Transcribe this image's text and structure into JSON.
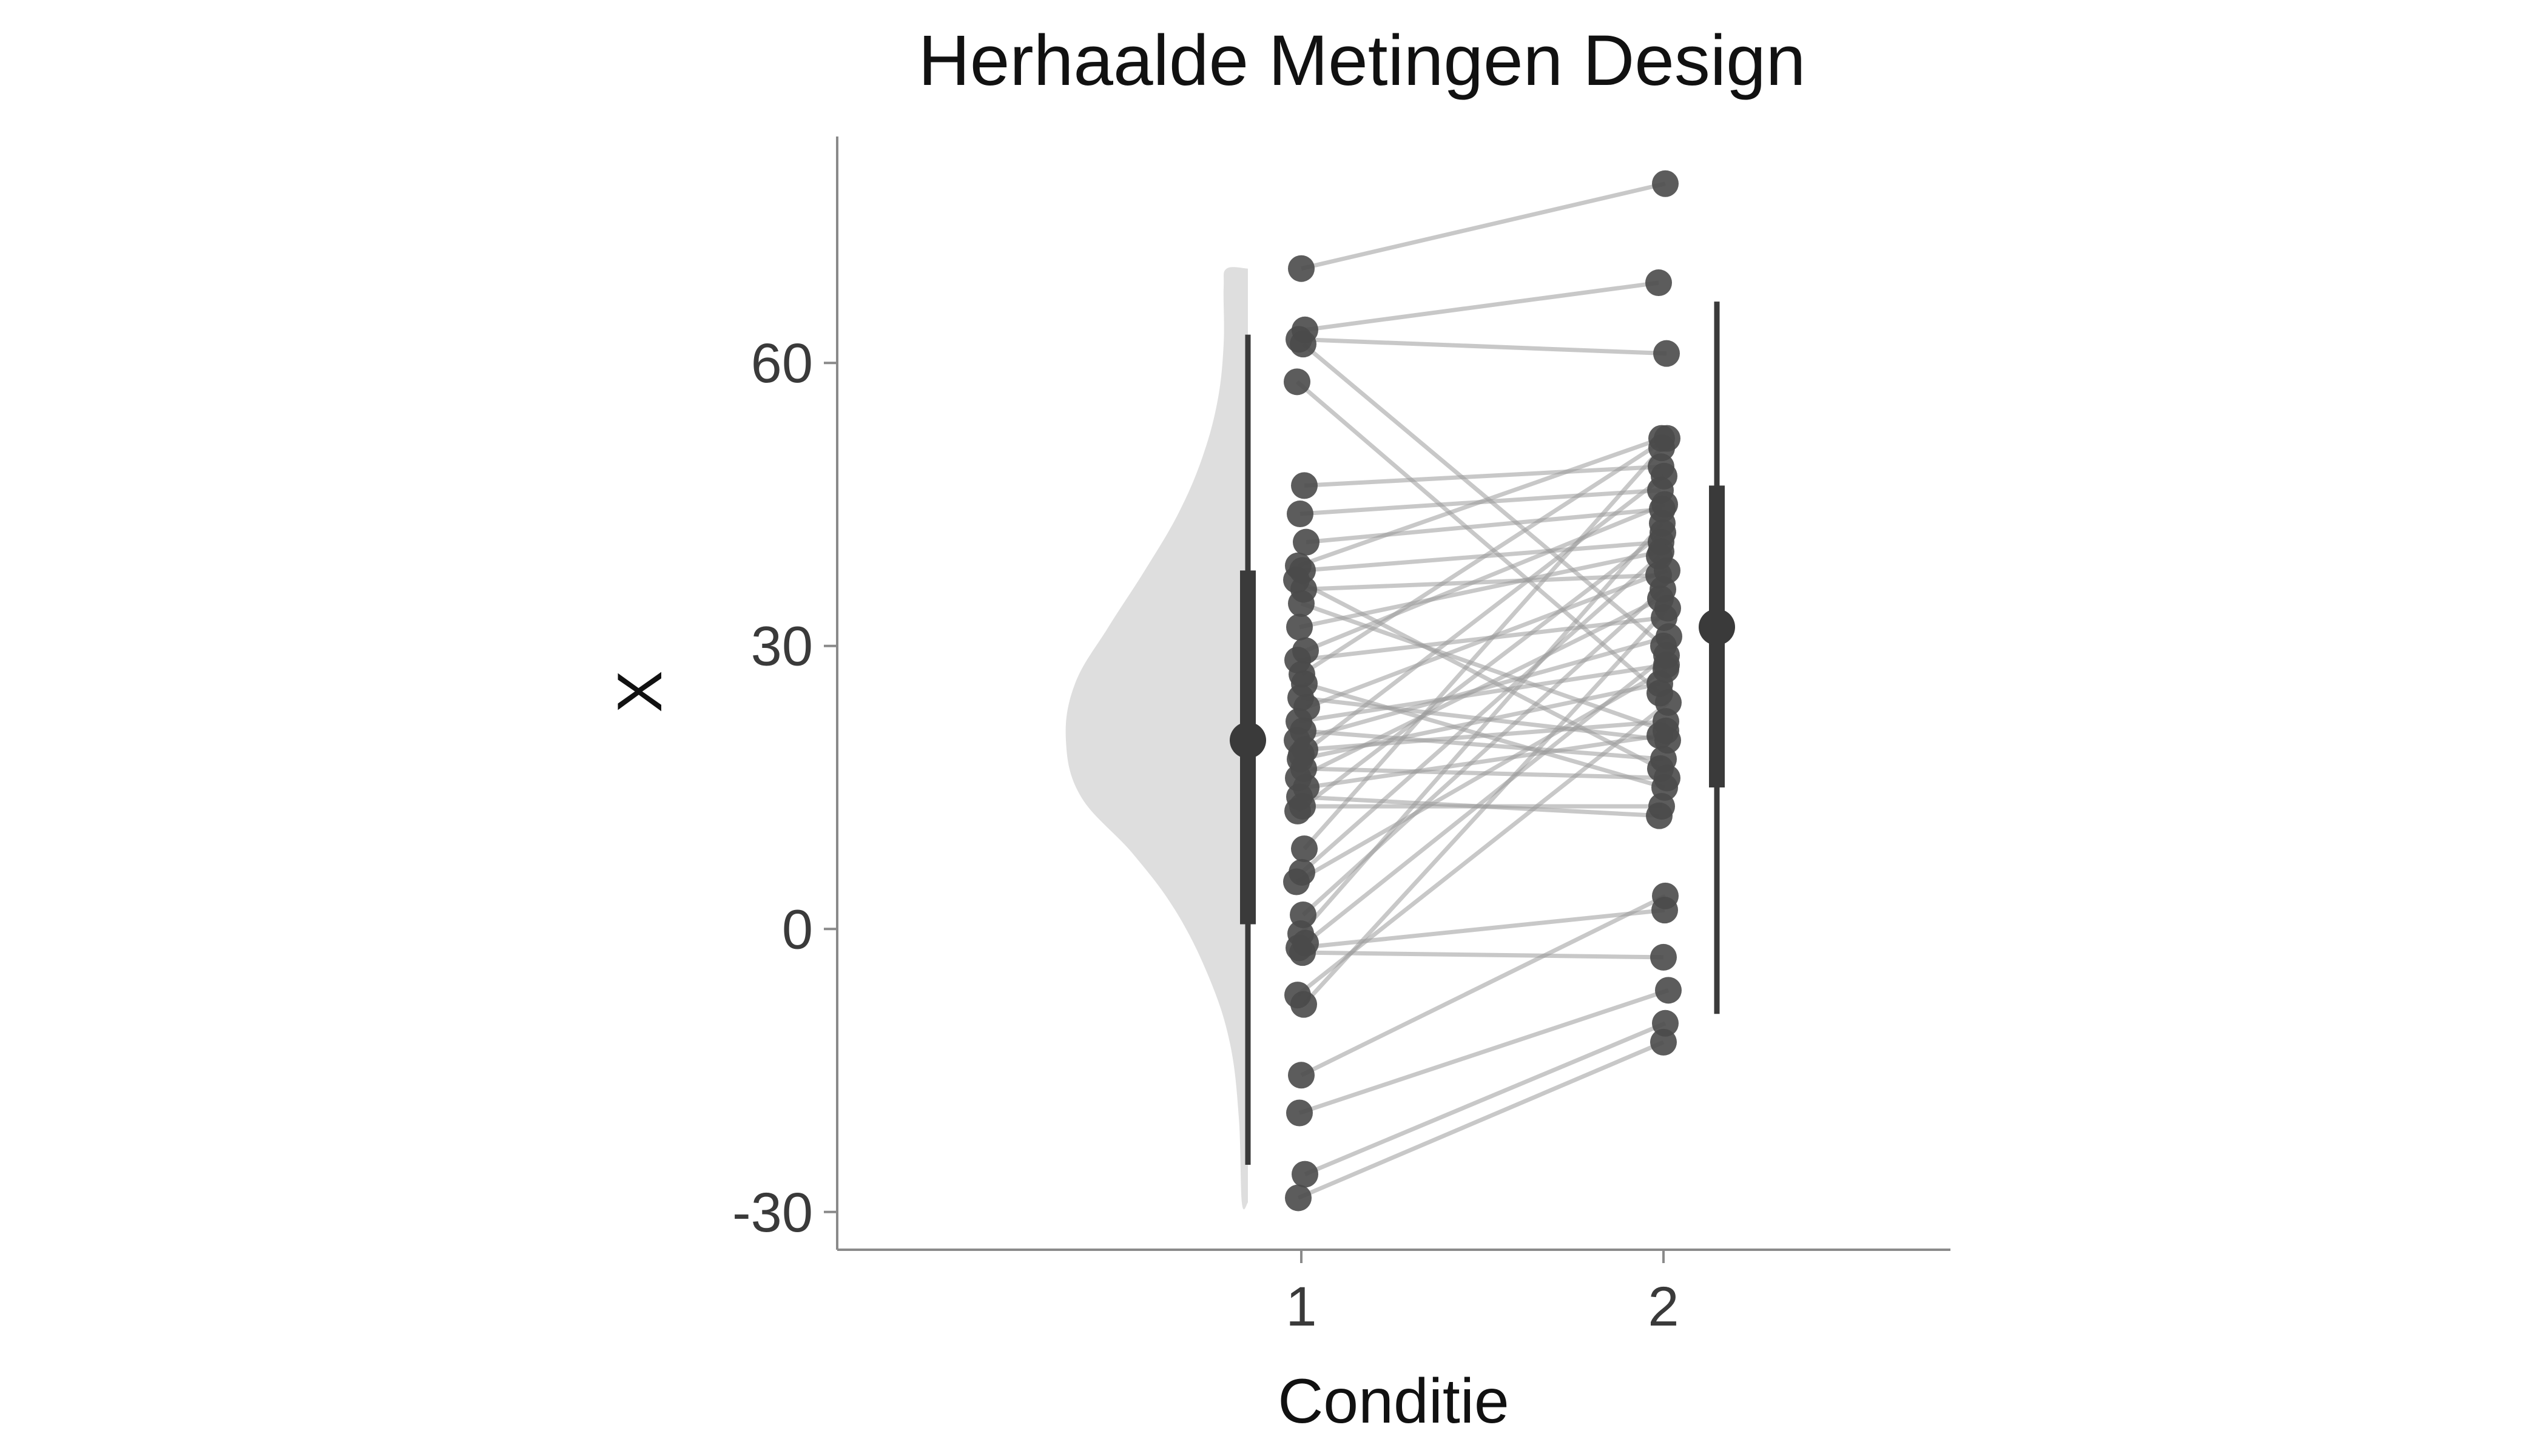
{
  "chart_data": {
    "type": "raincloud",
    "title": "Herhaalde Metingen Design",
    "xlabel": "Conditie",
    "ylabel": "X",
    "categories": [
      "1",
      "2"
    ],
    "y_ticks": [
      -30,
      0,
      30,
      60
    ],
    "y_tick_labels": [
      "-30",
      "0",
      "30",
      "60"
    ],
    "ylim": [
      -34,
      84
    ],
    "grid": false,
    "colors": {
      "points": "#4a4a4a",
      "lines": "#9a9a9a",
      "violin": "#dedede",
      "summary": "#3a3a3a"
    },
    "paired_points": [
      {
        "c1": 70,
        "c2": 79
      },
      {
        "c1": 63.5,
        "c2": 68.5
      },
      {
        "c1": 62.5,
        "c2": 61
      },
      {
        "c1": 62,
        "c2": 30
      },
      {
        "c1": 58,
        "c2": 25
      },
      {
        "c1": 47,
        "c2": 49
      },
      {
        "c1": 44,
        "c2": 46.5
      },
      {
        "c1": 41,
        "c2": 44.5
      },
      {
        "c1": 38.5,
        "c2": 52
      },
      {
        "c1": 38,
        "c2": 41
      },
      {
        "c1": 37,
        "c2": 17
      },
      {
        "c1": 36,
        "c2": 37.5
      },
      {
        "c1": 34.5,
        "c2": 21
      },
      {
        "c1": 32,
        "c2": 40
      },
      {
        "c1": 29.5,
        "c2": 45
      },
      {
        "c1": 28.5,
        "c2": 33
      },
      {
        "c1": 27,
        "c2": 52
      },
      {
        "c1": 26,
        "c2": 15
      },
      {
        "c1": 24.5,
        "c2": 20
      },
      {
        "c1": 23.5,
        "c2": 38
      },
      {
        "c1": 22,
        "c2": 28
      },
      {
        "c1": 21,
        "c2": 18
      },
      {
        "c1": 20,
        "c2": 31
      },
      {
        "c1": 19,
        "c2": 22
      },
      {
        "c1": 18.5,
        "c2": 48
      },
      {
        "c1": 18,
        "c2": 26
      },
      {
        "c1": 17,
        "c2": 16
      },
      {
        "c1": 16,
        "c2": 35
      },
      {
        "c1": 15,
        "c2": 20.5
      },
      {
        "c1": 14,
        "c2": 12
      },
      {
        "c1": 13,
        "c2": 13
      },
      {
        "c1": 12.5,
        "c2": 42
      },
      {
        "c1": 8.5,
        "c2": 51
      },
      {
        "c1": 6,
        "c2": 39.5
      },
      {
        "c1": 5,
        "c2": 27.5
      },
      {
        "c1": 1.5,
        "c2": 36
      },
      {
        "c1": -0.5,
        "c2": 43
      },
      {
        "c1": -1.5,
        "c2": 29
      },
      {
        "c1": -2,
        "c2": 2
      },
      {
        "c1": -2.5,
        "c2": -3
      },
      {
        "c1": -7,
        "c2": 24
      },
      {
        "c1": -8,
        "c2": 34
      },
      {
        "c1": -15.5,
        "c2": 3.5
      },
      {
        "c1": -19.5,
        "c2": -6.5
      },
      {
        "c1": -26,
        "c2": -10
      },
      {
        "c1": -28.5,
        "c2": -12
      }
    ],
    "summary": [
      {
        "category": "1",
        "median": 20,
        "q1": 0.5,
        "q3": 38,
        "min": -25,
        "max": 63
      },
      {
        "category": "2",
        "median": 32,
        "q1": 15,
        "q3": 47,
        "min": -9,
        "max": 66.5
      }
    ],
    "violin": {
      "category": "1",
      "y_range": [
        -29,
        70
      ],
      "density": [
        {
          "y": -29,
          "w": 0.02
        },
        {
          "y": -20,
          "w": 0.03
        },
        {
          "y": -12,
          "w": 0.06
        },
        {
          "y": -5,
          "w": 0.13
        },
        {
          "y": 2,
          "w": 0.24
        },
        {
          "y": 8,
          "w": 0.38
        },
        {
          "y": 14,
          "w": 0.55
        },
        {
          "y": 20,
          "w": 0.6
        },
        {
          "y": 26,
          "w": 0.57
        },
        {
          "y": 32,
          "w": 0.46
        },
        {
          "y": 38,
          "w": 0.34
        },
        {
          "y": 44,
          "w": 0.23
        },
        {
          "y": 50,
          "w": 0.15
        },
        {
          "y": 56,
          "w": 0.1
        },
        {
          "y": 62,
          "w": 0.08
        },
        {
          "y": 68,
          "w": 0.08
        },
        {
          "y": 70,
          "w": 0.07
        }
      ]
    }
  }
}
